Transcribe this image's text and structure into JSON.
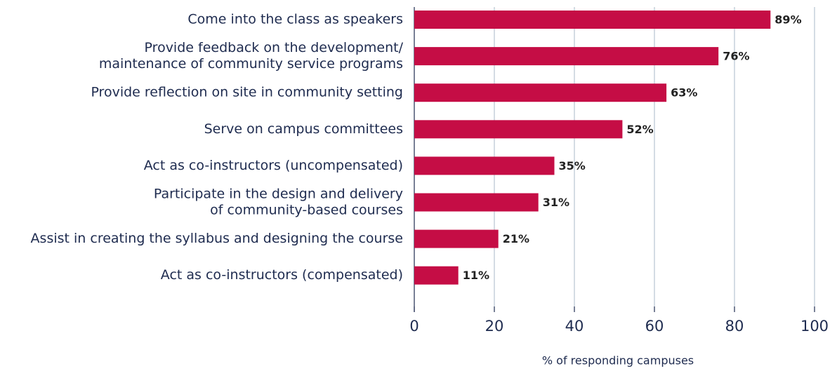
{
  "chart_data": {
    "type": "bar",
    "orientation": "horizontal",
    "x_label": "% of responding campuses",
    "categories": [
      [
        "Come into the class as speakers"
      ],
      [
        "Provide feedback on the development/",
        "maintenance of community service programs"
      ],
      [
        "Provide reflection on site in community setting"
      ],
      [
        "Serve on campus committees"
      ],
      [
        "Act as co-instructors (uncompensated)"
      ],
      [
        "Participate in the design and delivery",
        "of community-based courses"
      ],
      [
        "Assist in creating the syllabus and designing the course"
      ],
      [
        "Act as co-instructors (compensated)"
      ]
    ],
    "values": [
      89,
      76,
      63,
      52,
      35,
      31,
      21,
      11
    ],
    "value_labels": [
      "89%",
      "76%",
      "63%",
      "52%",
      "35%",
      "31%",
      "21%",
      "11%"
    ],
    "color": "#c50d45",
    "xlim": [
      0,
      100
    ],
    "xticks": [
      0,
      20,
      40,
      60,
      80,
      100
    ],
    "grid": true
  }
}
